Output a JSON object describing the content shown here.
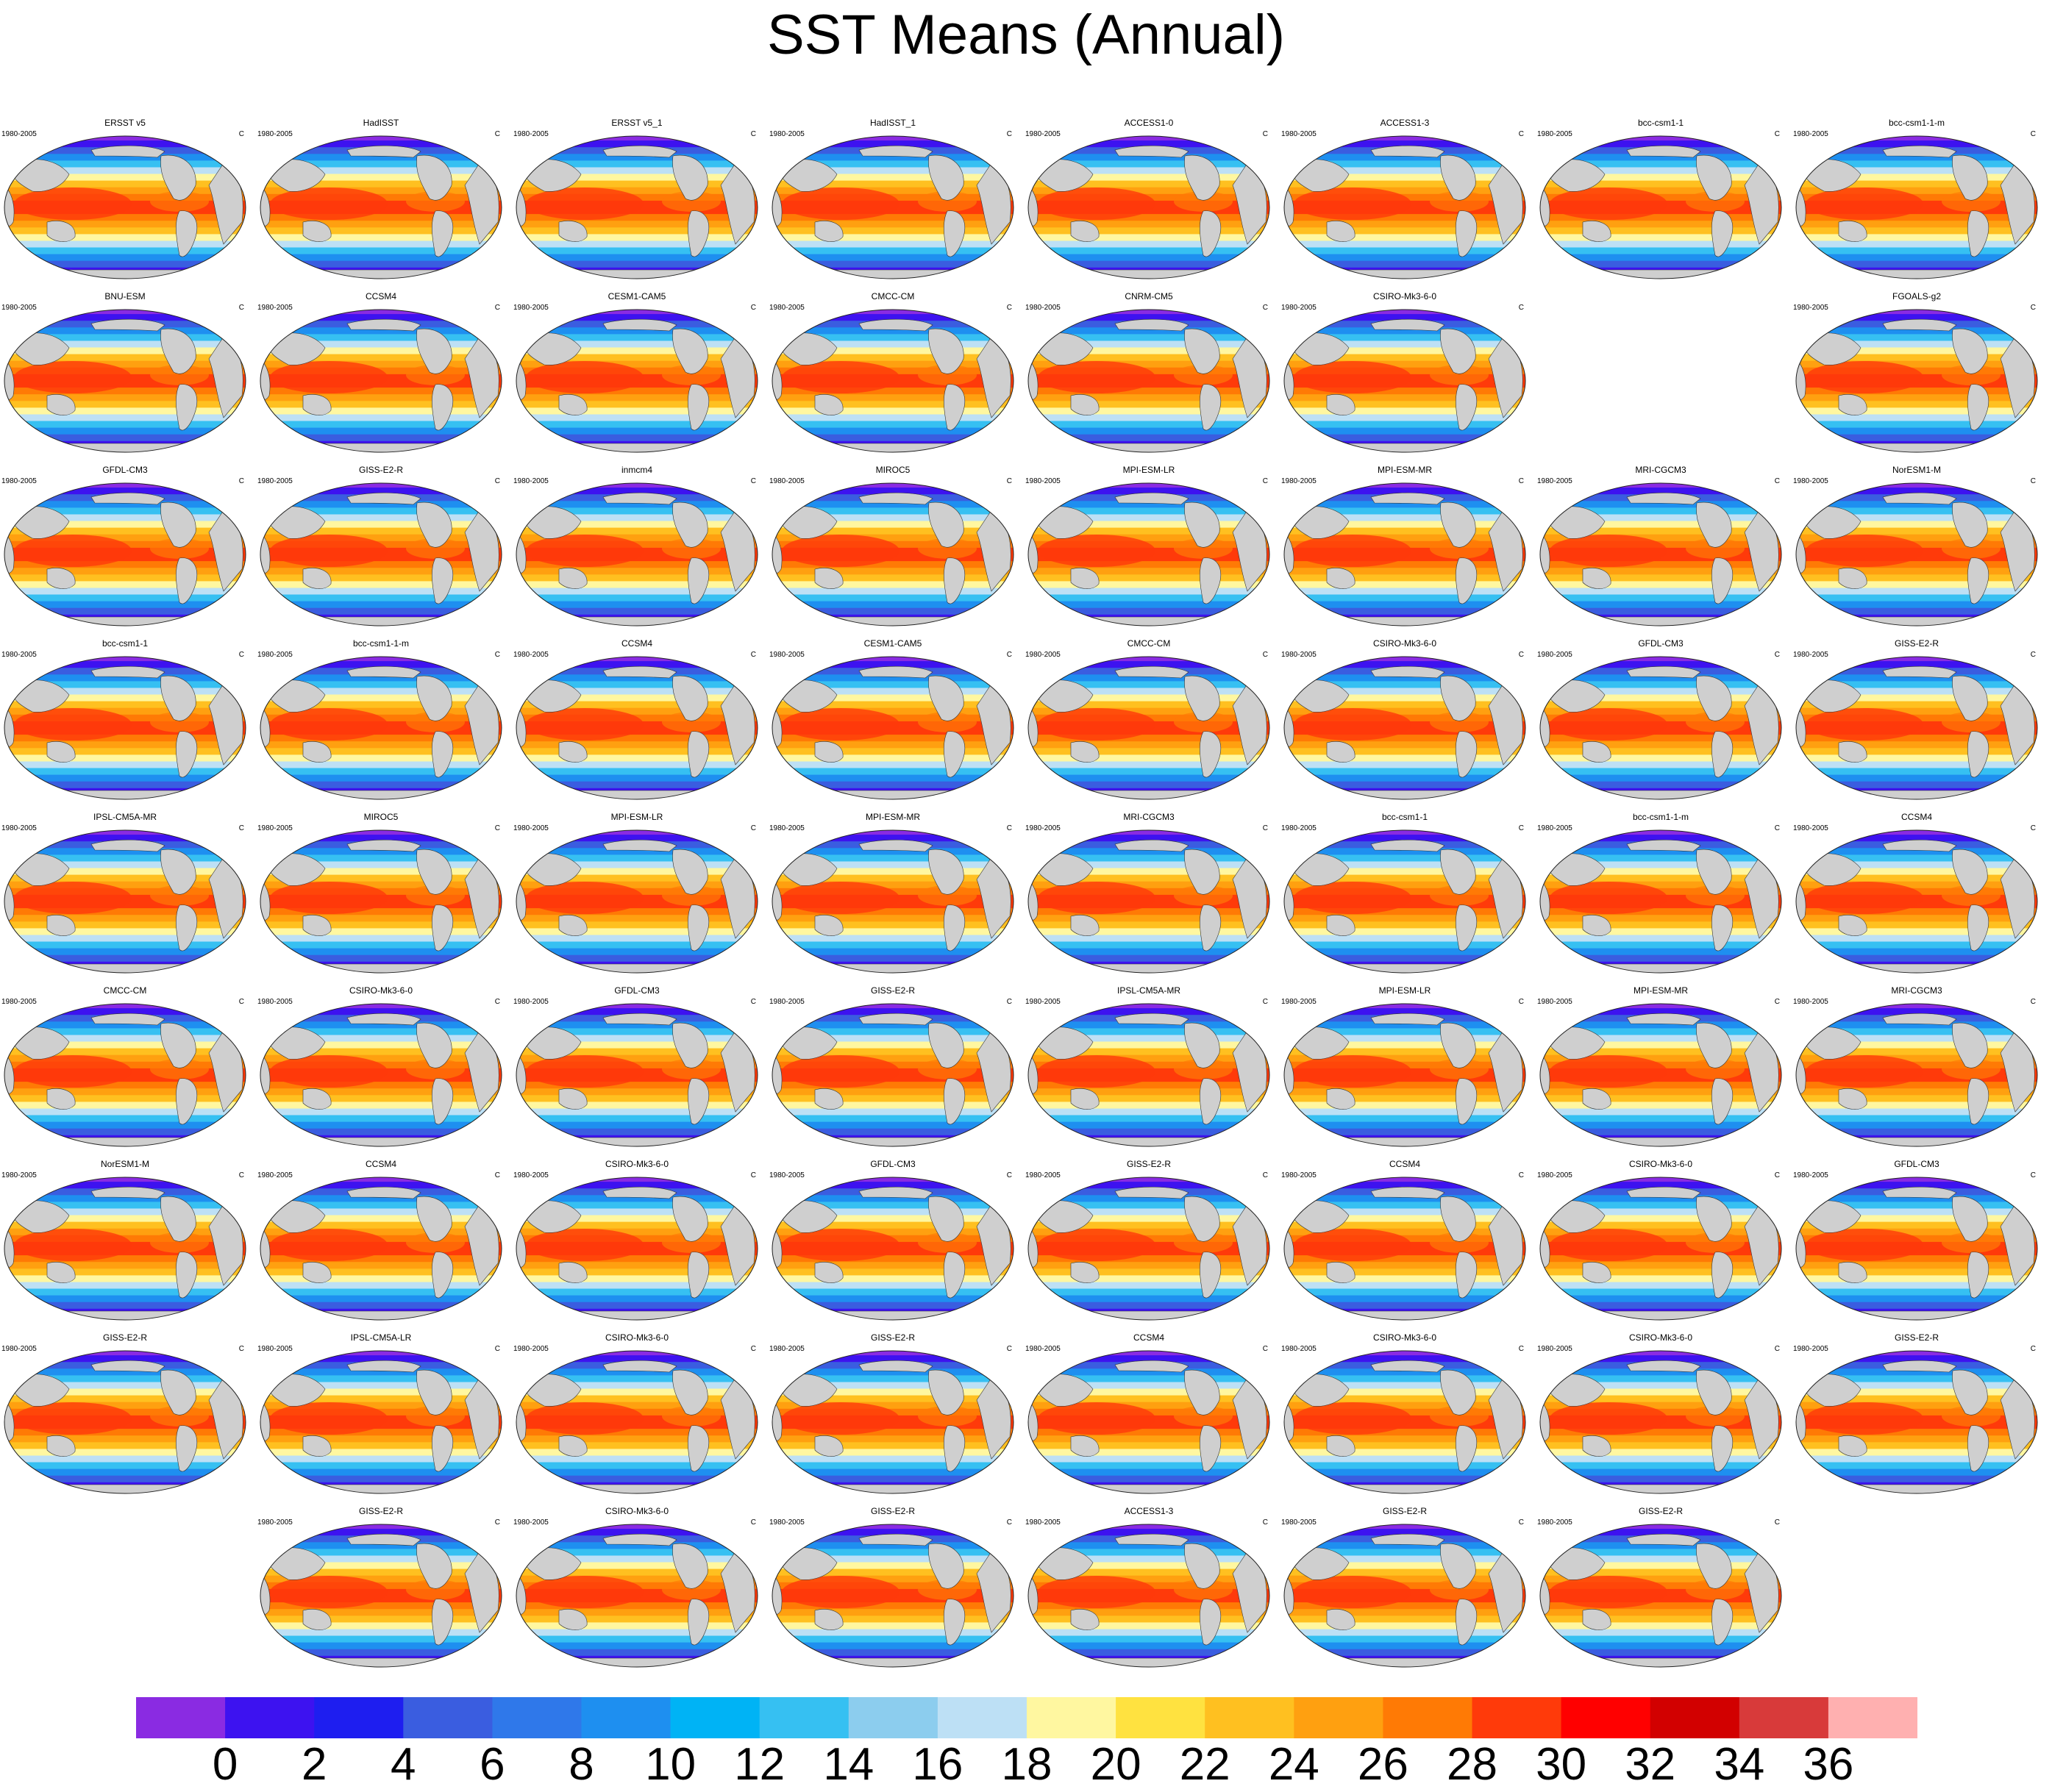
{
  "figure": {
    "title": "SST Means (Annual)",
    "period": "1980-2005",
    "units": "C"
  },
  "chart_data": {
    "type": "heatmap",
    "title": "SST Means (Annual)",
    "variable": "Sea surface temperature annual mean",
    "period": "1980-2005",
    "units": "C",
    "colorbar": {
      "orientation": "horizontal",
      "placement": "bottom",
      "levels": [
        0,
        2,
        4,
        6,
        8,
        10,
        12,
        14,
        16,
        18,
        20,
        22,
        24,
        26,
        28,
        30,
        32,
        34,
        36
      ],
      "tick_labels": [
        "0",
        "2",
        "4",
        "6",
        "8",
        "10",
        "12",
        "14",
        "16",
        "18",
        "20",
        "22",
        "24",
        "26",
        "28",
        "30",
        "32",
        "34",
        "36"
      ],
      "colors": [
        "#8a2be2",
        "#3d12f0",
        "#1e1ef0",
        "#3a5de0",
        "#2f78ea",
        "#1e8ff0",
        "#00b3f5",
        "#36c0f2",
        "#8ccdee",
        "#bde0f5",
        "#fff7a0",
        "#ffe240",
        "#ffc020",
        "#ffa010",
        "#ff7a05",
        "#ff3a0a",
        "#ff0000",
        "#d20000",
        "#d83a3a",
        "#ffb0b0"
      ]
    },
    "rows": [
      [
        "ERSST v5",
        "HadISST",
        "ERSST v5_1",
        "HadISST_1",
        "ACCESS1-0",
        "ACCESS1-3",
        "bcc-csm1-1",
        "bcc-csm1-1-m"
      ],
      [
        "BNU-ESM",
        "CCSM4",
        "CESM1-CAM5",
        "CMCC-CM",
        "CNRM-CM5",
        "CSIRO-Mk3-6-0",
        "",
        "FGOALS-g2"
      ],
      [
        "GFDL-CM3",
        "GISS-E2-R",
        "inmcm4",
        "MIROC5",
        "MPI-ESM-LR",
        "MPI-ESM-MR",
        "MRI-CGCM3",
        "NorESM1-M"
      ],
      [
        "bcc-csm1-1",
        "bcc-csm1-1-m",
        "CCSM4",
        "CESM1-CAM5",
        "CMCC-CM",
        "CSIRO-Mk3-6-0",
        "GFDL-CM3",
        "GISS-E2-R"
      ],
      [
        "IPSL-CM5A-MR",
        "MIROC5",
        "MPI-ESM-LR",
        "MPI-ESM-MR",
        "MRI-CGCM3",
        "bcc-csm1-1",
        "bcc-csm1-1-m",
        "CCSM4"
      ],
      [
        "CMCC-CM",
        "CSIRO-Mk3-6-0",
        "GFDL-CM3",
        "GISS-E2-R",
        "IPSL-CM5A-MR",
        "MPI-ESM-LR",
        "MPI-ESM-MR",
        "MRI-CGCM3"
      ],
      [
        "NorESM1-M",
        "CCSM4",
        "CSIRO-Mk3-6-0",
        "GFDL-CM3",
        "GISS-E2-R",
        "CCSM4",
        "CSIRO-Mk3-6-0",
        "GFDL-CM3"
      ],
      [
        "GISS-E2-R",
        "IPSL-CM5A-LR",
        "CSIRO-Mk3-6-0",
        "GISS-E2-R",
        "CCSM4",
        "CSIRO-Mk3-6-0",
        "CSIRO-Mk3-6-0",
        "GISS-E2-R"
      ],
      [
        "",
        "GISS-E2-R",
        "CSIRO-Mk3-6-0",
        "GISS-E2-R",
        "ACCESS1-3",
        "GISS-E2-R",
        "GISS-E2-R",
        ""
      ]
    ]
  }
}
